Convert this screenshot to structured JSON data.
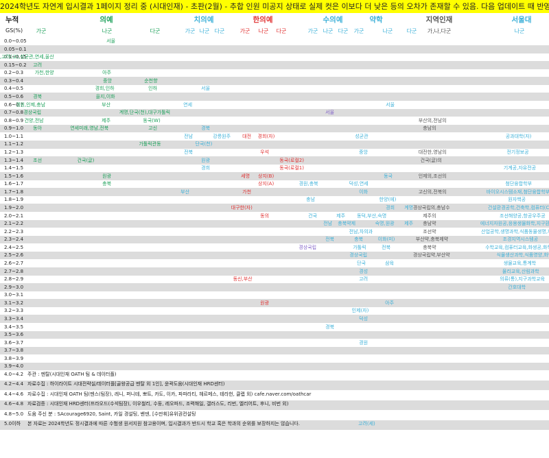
{
  "title": "2024학년도 자연계 입시결과 1페이지 정리 중 (시대인재) - 초판(2월) - 추합 인원 미공지 상태로 실제 컷은 이보다 더 낮은 등의 오차가 존재할 수 있음. 다음 업데이트 때 반영 예정",
  "header": {
    "cumulative": "누적",
    "gs_label": "GS(%)",
    "categories": [
      "의예",
      "치의예",
      "한의예",
      "수의예",
      "약학",
      "지역인재",
      "서울대"
    ],
    "subs": [
      "가군",
      "나군",
      "다군",
      "가군",
      "나군",
      "다군",
      "가군",
      "나군",
      "다군",
      "가군",
      "나군",
      "다군",
      "가군",
      "나군",
      "다군",
      "가,나,다군",
      "나군"
    ]
  },
  "rows": [
    "0.0~0.05",
    "0.05~0.1",
    "0.1~0.15",
    "0.15~0.2",
    "0.2~0.3",
    "0.3~0.4",
    "0.4~0.5",
    "0.5~0.6",
    "0.6~0.7",
    "0.7~0.8",
    "0.8~0.9",
    "0.9~1.0",
    "1.0~1.1",
    "1.1~1.2",
    "1.2~1.3",
    "1.3~1.4",
    "1.4~1.5",
    "1.5~1.6",
    "1.6~1.7",
    "1.7~1.8",
    "1.8~1.9",
    "1.9~2.0",
    "2.0~2.1",
    "2.1~2.2",
    "2.2~2.3",
    "2.3~2.4",
    "2.4~2.5",
    "2.5~2.6",
    "2.6~2.7",
    "2.7~2.8",
    "2.8~2.9",
    "2.9~3.0",
    "3.0~3.1",
    "3.1~3.2",
    "3.2~3.3",
    "3.3~3.4",
    "3.4~3.5",
    "3.5~3.6",
    "3.6~3.7",
    "3.7~3.8",
    "3.8~3.9",
    "3.9~4.0"
  ],
  "entries": [
    {
      "r": 0,
      "x": 159,
      "t": "서울",
      "c": "#1ca05a"
    },
    {
      "r": 2,
      "x": 10,
      "t": "가톨릭,고려(고),성균관,연세,울산",
      "c": "#1ca05a"
    },
    {
      "r": 3,
      "x": 52,
      "t": "고려",
      "c": "#1ca05a"
    },
    {
      "r": 4,
      "x": 59,
      "t": "가천,한양",
      "c": "#1ca05a"
    },
    {
      "r": 4,
      "x": 153,
      "t": "아주",
      "c": "#1ca05a"
    },
    {
      "r": 5,
      "x": 154,
      "t": "중앙",
      "c": "#1ca05a"
    },
    {
      "r": 5,
      "x": 216,
      "t": "순천향",
      "c": "#1ca05a"
    },
    {
      "r": 6,
      "x": 147,
      "t": "경희,인하",
      "c": "#1ca05a"
    },
    {
      "r": 6,
      "x": 220,
      "t": "인하",
      "c": "#1ca05a"
    },
    {
      "r": 6,
      "x": 297,
      "t": "서울",
      "c": "#3cb0d8"
    },
    {
      "r": 7,
      "x": 52,
      "t": "경북",
      "c": "#1ca05a"
    },
    {
      "r": 7,
      "x": 148,
      "t": "을지,이화",
      "c": "#1ca05a"
    },
    {
      "r": 8,
      "x": 36,
      "t": "경원,인제,충남",
      "c": "#1ca05a"
    },
    {
      "r": 8,
      "x": 152,
      "t": "부산",
      "c": "#1ca05a"
    },
    {
      "r": 8,
      "x": 271,
      "t": "연세",
      "c": "#3cb0d8"
    },
    {
      "r": 8,
      "x": 566,
      "t": "서울",
      "c": "#3cb0d8"
    },
    {
      "r": 9,
      "x": 42,
      "t": "경상국립",
      "c": "#1ca05a"
    },
    {
      "r": 9,
      "x": 196,
      "t": "계명,단국(천),대구가톨릭",
      "c": "#1ca05a"
    },
    {
      "r": 9,
      "x": 478,
      "t": "서울",
      "c": "#8060c8"
    },
    {
      "r": 10,
      "x": 44,
      "t": "건양,전남",
      "c": "#1ca05a"
    },
    {
      "r": 10,
      "x": 152,
      "t": "제주",
      "c": "#1ca05a"
    },
    {
      "r": 10,
      "x": 216,
      "t": "동국(W)",
      "c": "#1ca05a"
    },
    {
      "r": 10,
      "x": 622,
      "t": "부산의,전남의",
      "c": "#555"
    },
    {
      "r": 11,
      "x": 52,
      "t": "동아",
      "c": "#1ca05a"
    },
    {
      "r": 11,
      "x": 119,
      "t": "연세미래,영남,전북",
      "c": "#1ca05a"
    },
    {
      "r": 11,
      "x": 220,
      "t": "고신",
      "c": "#1ca05a"
    },
    {
      "r": 11,
      "x": 297,
      "t": "경북",
      "c": "#3cb0d8"
    },
    {
      "r": 11,
      "x": 622,
      "t": "충남의",
      "c": "#555"
    },
    {
      "r": 12,
      "x": 272,
      "t": "전남",
      "c": "#3cb0d8"
    },
    {
      "r": 12,
      "x": 318,
      "t": "강릉원주",
      "c": "#3cb0d8"
    },
    {
      "r": 12,
      "x": 357,
      "t": "대전",
      "c": "#e03030"
    },
    {
      "r": 12,
      "x": 383,
      "t": "경희(자)",
      "c": "#e03030"
    },
    {
      "r": 12,
      "x": 523,
      "t": "성균관",
      "c": "#3cb0d8"
    },
    {
      "r": 12,
      "x": 748,
      "t": "공과대학(자)",
      "c": "#3cb0d8"
    },
    {
      "r": 13,
      "x": 212,
      "t": "가톨릭관동",
      "c": "#1ca05a"
    },
    {
      "r": 13,
      "x": 292,
      "t": "단국(천)",
      "c": "#3cb0d8"
    },
    {
      "r": 14,
      "x": 272,
      "t": "전북",
      "c": "#3cb0d8"
    },
    {
      "r": 14,
      "x": 383,
      "t": "우석",
      "c": "#e03030"
    },
    {
      "r": 14,
      "x": 527,
      "t": "중앙",
      "c": "#3cb0d8"
    },
    {
      "r": 14,
      "x": 622,
      "t": "대전한,영남의",
      "c": "#555"
    },
    {
      "r": 14,
      "x": 748,
      "t": "전기정보공",
      "c": "#3cb0d8"
    },
    {
      "r": 15,
      "x": 52,
      "t": "조선",
      "c": "#1ca05a"
    },
    {
      "r": 15,
      "x": 120,
      "t": "건국(글)",
      "c": "#1ca05a"
    },
    {
      "r": 15,
      "x": 297,
      "t": "원광",
      "c": "#3cb0d8"
    },
    {
      "r": 15,
      "x": 418,
      "t": "동국(로컬2)",
      "c": "#e03030"
    },
    {
      "r": 15,
      "x": 622,
      "t": "건국(글)의",
      "c": "#555"
    },
    {
      "r": 16,
      "x": 297,
      "t": "경희",
      "c": "#3cb0d8"
    },
    {
      "r": 16,
      "x": 418,
      "t": "동국(로컬1)",
      "c": "#e03030"
    },
    {
      "r": 16,
      "x": 748,
      "t": "기계공,자유전공",
      "c": "#3cb0d8"
    },
    {
      "r": 17,
      "x": 153,
      "t": "원광",
      "c": "#1ca05a"
    },
    {
      "r": 17,
      "x": 355,
      "t": "세명",
      "c": "#e03030"
    },
    {
      "r": 17,
      "x": 383,
      "t": "상지(B)",
      "c": "#e03030"
    },
    {
      "r": 17,
      "x": 563,
      "t": "동국",
      "c": "#3cb0d8"
    },
    {
      "r": 17,
      "x": 622,
      "t": "인제의,조선의",
      "c": "#555"
    },
    {
      "r": 18,
      "x": 153,
      "t": "충북",
      "c": "#1ca05a"
    },
    {
      "r": 18,
      "x": 383,
      "t": "상지(A)",
      "c": "#e03030"
    },
    {
      "r": 18,
      "x": 444,
      "t": "경원,충북",
      "c": "#3cb0d8"
    },
    {
      "r": 18,
      "x": 517,
      "t": "덕성,연세",
      "c": "#3cb0d8"
    },
    {
      "r": 18,
      "x": 748,
      "t": "첨단융합학부",
      "c": "#3cb0d8"
    },
    {
      "r": 19,
      "x": 267,
      "t": "부산",
      "c": "#3cb0d8"
    },
    {
      "r": 19,
      "x": 357,
      "t": "가천",
      "c": "#e03030"
    },
    {
      "r": 19,
      "x": 527,
      "t": "이화",
      "c": "#3cb0d8"
    },
    {
      "r": 19,
      "x": 622,
      "t": "고신의,전북의",
      "c": "#555"
    },
    {
      "r": 19,
      "x": 740,
      "t": "바이오시스템소재,첨단융합학부(자)",
      "c": "#3cb0d8"
    },
    {
      "r": 20,
      "x": 450,
      "t": "충남",
      "c": "#3cb0d8"
    },
    {
      "r": 20,
      "x": 560,
      "t": "한양(에)",
      "c": "#3cb0d8"
    },
    {
      "r": 20,
      "x": 748,
      "t": "원자핵공",
      "c": "#3cb0d8"
    },
    {
      "r": 21,
      "x": 346,
      "t": "대구한(자)",
      "c": "#e03030"
    },
    {
      "r": 21,
      "x": 566,
      "t": "경희",
      "c": "#3cb0d8"
    },
    {
      "r": 21,
      "x": 593,
      "t": "계명",
      "c": "#3cb0d8"
    },
    {
      "r": 21,
      "x": 618,
      "t": "경상국립의,충남수",
      "c": "#555"
    },
    {
      "r": 21,
      "x": 740,
      "t": "건설환경공학,건축학,컴퓨터(CC)",
      "c": "#3cb0d8"
    },
    {
      "r": 22,
      "x": 383,
      "t": "동의",
      "c": "#e03030"
    },
    {
      "r": 22,
      "x": 453,
      "t": "건국",
      "c": "#3cb0d8"
    },
    {
      "r": 22,
      "x": 494,
      "t": "제주",
      "c": "#3cb0d8"
    },
    {
      "r": 22,
      "x": 533,
      "t": "동덕,부산,숙명",
      "c": "#3cb0d8"
    },
    {
      "r": 22,
      "x": 622,
      "t": "제주의",
      "c": "#555"
    },
    {
      "r": 22,
      "x": 748,
      "t": "조선해양공,항공우주공",
      "c": "#3cb0d8"
    },
    {
      "r": 23,
      "x": 475,
      "t": "전남",
      "c": "#3cb0d8"
    },
    {
      "r": 23,
      "x": 500,
      "t": "충북약제",
      "c": "#3cb0d8"
    },
    {
      "r": 23,
      "x": 555,
      "t": "숙명,원광",
      "c": "#3cb0d8"
    },
    {
      "r": 23,
      "x": 593,
      "t": "제주",
      "c": "#3cb0d8"
    },
    {
      "r": 23,
      "x": 622,
      "t": "충남약",
      "c": "#555"
    },
    {
      "r": 23,
      "x": 736,
      "t": "에너지자원공,응용생물화학,지구환경과학",
      "c": "#3cb0d8"
    },
    {
      "r": 24,
      "x": 519,
      "t": "전남,차의과",
      "c": "#3cb0d8"
    },
    {
      "r": 24,
      "x": 622,
      "t": "조선약",
      "c": "#555"
    },
    {
      "r": 24,
      "x": 736,
      "t": "산업공학,생명과학,식품동물생명,재료공",
      "c": "#3cb0d8"
    },
    {
      "r": 25,
      "x": 478,
      "t": "전북",
      "c": "#3cb0d8"
    },
    {
      "r": 25,
      "x": 520,
      "t": "충북",
      "c": "#3cb0d8"
    },
    {
      "r": 25,
      "x": 558,
      "t": "이화(미)",
      "c": "#3cb0d8"
    },
    {
      "r": 25,
      "x": 620,
      "t": "부산약,충북제약",
      "c": "#555"
    },
    {
      "r": 25,
      "x": 748,
      "t": "조경지역시스템공",
      "c": "#3cb0d8"
    },
    {
      "r": 26,
      "x": 443,
      "t": "경상국립",
      "c": "#8060c8"
    },
    {
      "r": 26,
      "x": 520,
      "t": "가톨릭",
      "c": "#3cb0d8"
    },
    {
      "r": 26,
      "x": 560,
      "t": "전북",
      "c": "#3cb0d8"
    },
    {
      "r": 26,
      "x": 622,
      "t": "충북약",
      "c": "#555"
    },
    {
      "r": 26,
      "x": 740,
      "t": "수학교육,컴퓨터교육,화생공,화학교육",
      "c": "#3cb0d8"
    },
    {
      "r": 27,
      "x": 517,
      "t": "경상국립",
      "c": "#3cb0d8"
    },
    {
      "r": 27,
      "x": 618,
      "t": "경상국립약,부산약",
      "c": "#555"
    },
    {
      "r": 27,
      "x": 748,
      "t": "식물생산과학,식품영양,화학",
      "c": "#3cb0d8"
    },
    {
      "r": 28,
      "x": 524,
      "t": "단국",
      "c": "#3cb0d8"
    },
    {
      "r": 28,
      "x": 565,
      "t": "삼육",
      "c": "#3cb0d8"
    },
    {
      "r": 28,
      "x": 748,
      "t": "생물교육,통계학",
      "c": "#3cb0d8"
    },
    {
      "r": 29,
      "x": 527,
      "t": "경성",
      "c": "#3cb0d8"
    },
    {
      "r": 29,
      "x": 748,
      "t": "물리교육,산림과학",
      "c": "#3cb0d8"
    },
    {
      "r": 30,
      "x": 348,
      "t": "동신,부산",
      "c": "#e03030"
    },
    {
      "r": 30,
      "x": 527,
      "t": "고려",
      "c": "#3cb0d8"
    },
    {
      "r": 30,
      "x": 748,
      "t": "의류(통),지구과학교육",
      "c": "#3cb0d8"
    },
    {
      "r": 31,
      "x": 748,
      "t": "간호대학",
      "c": "#3cb0d8"
    },
    {
      "r": 33,
      "x": 383,
      "t": "원광",
      "c": "#e03030"
    },
    {
      "r": 33,
      "x": 565,
      "t": "아주",
      "c": "#3cb0d8"
    },
    {
      "r": 34,
      "x": 520,
      "t": "인제(자)",
      "c": "#3cb0d8"
    },
    {
      "r": 35,
      "x": 527,
      "t": "덕성",
      "c": "#3cb0d8"
    },
    {
      "r": 36,
      "x": 478,
      "t": "경북",
      "c": "#3cb0d8"
    },
    {
      "r": 38,
      "x": 527,
      "t": "경원",
      "c": "#3cb0d8"
    }
  ],
  "footer": [
    {
      "range": "4.0~4.2",
      "text": "주관 : 멘탈(시대인재 OATH 팀 & 데이터플)"
    },
    {
      "range": "4.2~4.4",
      "text": "자료수집 : 하이라이트 시대전략실/데이터플[골왕공급 멘탈 외 1인], 윤곽도움(시대인재 HRD센터)"
    },
    {
      "range": "4.4~4.6",
      "text": "자료수집 : 시대인재 OATH 팀(멘스(팀장), 레니, 퍼니테, 뽀트, 카도, 이카, 파파라티, 헤르메스, 테라헌, 클랩 외) cafe.naver.com/oathcar"
    },
    {
      "range": "4.6~4.8",
      "text": "자료검증 : 시대인재 HRD센터(프라오드(수석팀장), 이우철리, 수둥, 레오파드, 조력해일, 갤러스도, 리번, 엘리어트, 후니, 비번 외)"
    },
    {
      "range": "4.8~5.0",
      "text": "도움 주신 분 : SAcourage6920, Saint, 카일 경설팅, 밴덴, [수만휘]유위권컨설팅"
    },
    {
      "range": "5.0이하",
      "text": "본 자료는 2024학년도 정시결과에 따른 수험생 원서지원 참고용이며, 입시결과가 반드시 학교 혹은 학과의 순위를 보장하지는 않습니다."
    }
  ],
  "footer_extra": {
    "text": "고려(세)",
    "color": "#3cb0d8"
  },
  "colors": {
    "title_bg": "#ffff00",
    "band": "#dcdcdc",
    "med": "#1ca05a",
    "dent": "#3cb0d8",
    "oriental": "#e03030",
    "vet": "#8060c8",
    "region": "#555555"
  }
}
